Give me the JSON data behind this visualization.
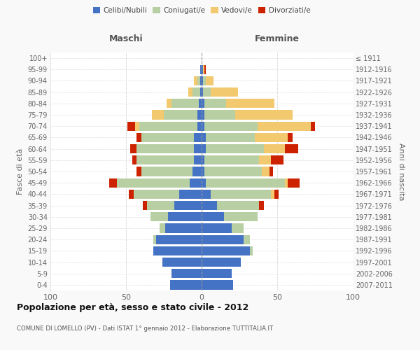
{
  "age_groups": [
    "0-4",
    "5-9",
    "10-14",
    "15-19",
    "20-24",
    "25-29",
    "30-34",
    "35-39",
    "40-44",
    "45-49",
    "50-54",
    "55-59",
    "60-64",
    "65-69",
    "70-74",
    "75-79",
    "80-84",
    "85-89",
    "90-94",
    "95-99",
    "100+"
  ],
  "birth_years": [
    "2007-2011",
    "2002-2006",
    "1997-2001",
    "1992-1996",
    "1987-1991",
    "1982-1986",
    "1977-1981",
    "1972-1976",
    "1967-1971",
    "1962-1966",
    "1957-1961",
    "1952-1956",
    "1947-1951",
    "1942-1946",
    "1937-1941",
    "1932-1936",
    "1927-1931",
    "1922-1926",
    "1917-1921",
    "1912-1916",
    "≤ 1911"
  ],
  "colors": {
    "celibi": "#4472c4",
    "coniugati": "#b8cfa4",
    "vedovi": "#f2c96e",
    "divorziati": "#cc2200"
  },
  "maschi": {
    "celibi": [
      21,
      20,
      26,
      32,
      30,
      24,
      22,
      18,
      15,
      8,
      6,
      5,
      5,
      5,
      3,
      3,
      2,
      1,
      1,
      1,
      0
    ],
    "coniugati": [
      0,
      0,
      0,
      0,
      2,
      4,
      12,
      18,
      30,
      48,
      34,
      38,
      38,
      35,
      38,
      22,
      18,
      5,
      2,
      0,
      0
    ],
    "vedovi": [
      0,
      0,
      0,
      0,
      0,
      0,
      0,
      0,
      0,
      0,
      0,
      0,
      0,
      0,
      3,
      8,
      3,
      3,
      2,
      0,
      0
    ],
    "divorziati": [
      0,
      0,
      0,
      0,
      0,
      0,
      0,
      3,
      3,
      5,
      3,
      3,
      4,
      3,
      5,
      0,
      0,
      0,
      0,
      0,
      0
    ]
  },
  "femmine": {
    "nubili": [
      21,
      20,
      26,
      32,
      28,
      20,
      15,
      10,
      6,
      3,
      2,
      2,
      3,
      3,
      2,
      2,
      2,
      1,
      1,
      1,
      0
    ],
    "coniugate": [
      0,
      0,
      0,
      2,
      4,
      8,
      22,
      28,
      40,
      52,
      38,
      36,
      38,
      32,
      35,
      20,
      14,
      5,
      2,
      0,
      0
    ],
    "vedove": [
      0,
      0,
      0,
      0,
      0,
      0,
      0,
      0,
      2,
      2,
      5,
      8,
      14,
      22,
      35,
      38,
      32,
      18,
      5,
      1,
      0
    ],
    "divorziate": [
      0,
      0,
      0,
      0,
      0,
      0,
      0,
      3,
      3,
      8,
      2,
      8,
      9,
      3,
      3,
      0,
      0,
      0,
      0,
      1,
      0
    ]
  },
  "xlim": 100,
  "title": "Popolazione per età, sesso e stato civile - 2012",
  "subtitle": "COMUNE DI LOMELLO (PV) - Dati ISTAT 1° gennaio 2012 - Elaborazione TUTTITALIA.IT",
  "ylabel": "Fasce di età",
  "ylabel_right": "Anni di nascita",
  "legend_labels": [
    "Celibi/Nubili",
    "Coniugati/e",
    "Vedovi/e",
    "Divorziati/e"
  ],
  "maschi_label": "Maschi",
  "femmine_label": "Femmine",
  "bg_color": "#f9f9f9",
  "plot_bg": "#ffffff"
}
